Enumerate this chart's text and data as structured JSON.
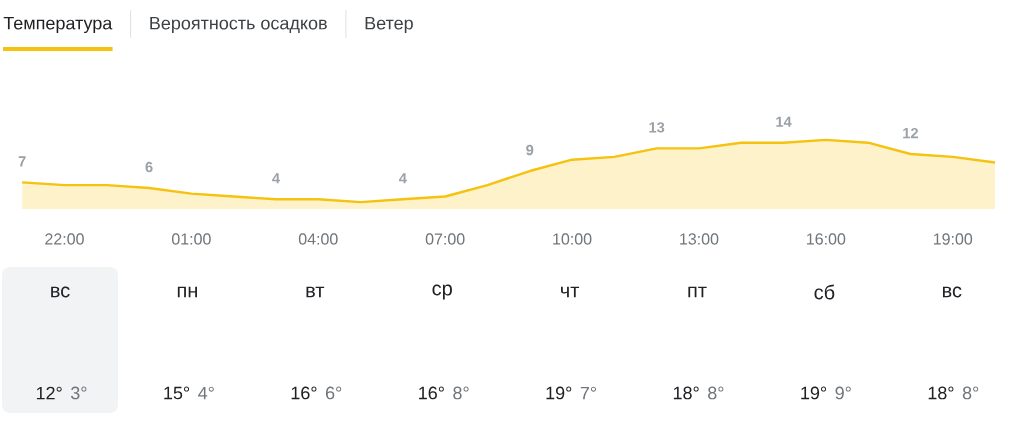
{
  "chart_data": [
    {
      "type": "area",
      "annotations": [
        "Температура",
        "Вероятность осадков",
        "Ветер"
      ],
      "color": "#f5c20f",
      "categories": [
        null,
        "22:00",
        null,
        null,
        "01:00",
        null,
        null,
        "04:00",
        null,
        null,
        "07:00",
        null,
        null,
        "10:00",
        null,
        null,
        "13:00",
        null,
        null,
        "16:00",
        null,
        null,
        "19:00",
        null
      ],
      "values": [
        7,
        6.5,
        6.5,
        6,
        5,
        4.5,
        4,
        4,
        3.5,
        4,
        4.5,
        6.5,
        9,
        11,
        11.5,
        13,
        13,
        14,
        14,
        14.5,
        14,
        12,
        11.5,
        10.5
      ],
      "value_labels": [
        "7",
        null,
        null,
        "6",
        null,
        null,
        "4",
        null,
        null,
        "4",
        null,
        null,
        "9",
        null,
        null,
        "13",
        null,
        null,
        "14",
        null,
        null,
        "12",
        null,
        null
      ]
    },
    {
      "type": "other",
      "categories": [
        "вс",
        "пн",
        "вт",
        "ср",
        "чт",
        "пт",
        "сб",
        "вс"
      ],
      "annotations": [
        "12°",
        "3°",
        "15°",
        "4°",
        "16°",
        "6°",
        "16°",
        "8°",
        "19°",
        "7°",
        "18°",
        "8°",
        "19°",
        "9°",
        "18°",
        "8°"
      ]
    }
  ]
}
